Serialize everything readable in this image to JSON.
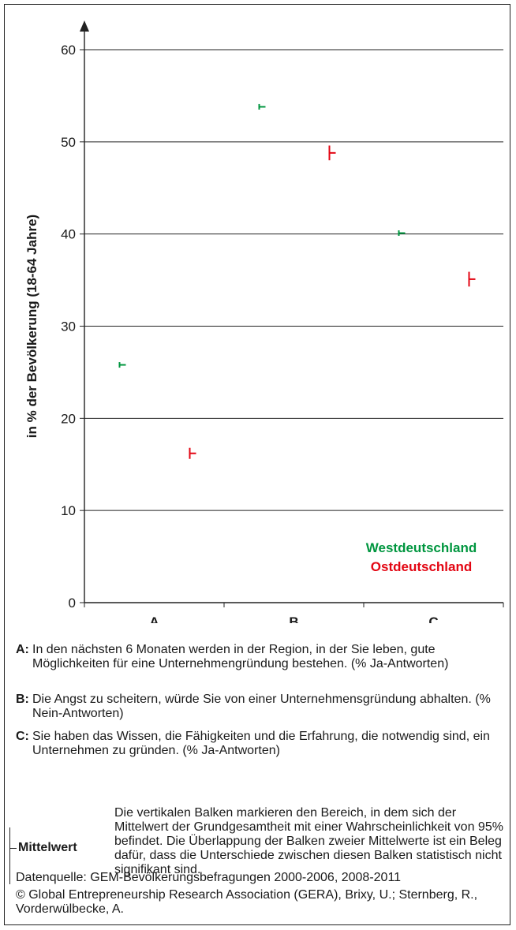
{
  "chart_data": {
    "type": "scatter",
    "ylabel": "in % der Bevölkerung (18-64 Jahre)",
    "ylim": [
      0,
      60
    ],
    "yticks": [
      "0",
      "10",
      "20",
      "30",
      "40",
      "50",
      "60"
    ],
    "categories": [
      "A",
      "B",
      "C"
    ],
    "grid": true,
    "series": [
      {
        "name": "Westdeutschland",
        "color": "#00963f",
        "values": [
          25.8,
          53.8,
          40.1
        ],
        "ci": [
          0.3,
          0.3,
          0.3
        ]
      },
      {
        "name": "Ostdeutschland",
        "color": "#e30613",
        "values": [
          16.2,
          48.8,
          35.1
        ],
        "ci": [
          0.6,
          0.8,
          0.8
        ]
      }
    ],
    "legend_position": "bottom-right"
  },
  "notes": [
    {
      "key": "A:",
      "text": "In den nächsten 6 Monaten werden in der Region, in der Sie leben, gute Möglichkeiten für eine Unternehmengründung bestehen. (% Ja-Antworten)"
    },
    {
      "key": "B:",
      "text": "Die Angst zu scheitern, würde Sie von einer Unternehmensgründung abhalten. (% Nein-Antworten)"
    },
    {
      "key": "C:",
      "text": "Sie haben das Wissen, die Fähigkeiten und die Erfahrung, die notwendig sind, ein Unternehmen zu gründen. (% Ja-Antworten)"
    }
  ],
  "mean_legend": {
    "label": "Mittelwert",
    "text": "Die vertikalen Balken markieren den Bereich, in dem sich der Mittelwert der Grundgesamtheit mit einer Wahrscheinlichkeit von 95% befindet. Die Überlappung der Balken zweier Mittelwerte ist ein Beleg dafür, dass die Unterschiede zwischen diesen Balken statistisch nicht signifikant sind."
  },
  "source": "Datenquelle: GEM-Bevölkerungsbefragungen 2000-2006, 2008-2011",
  "copyright": "© Global Entrepreneurship Research Association (GERA), Brixy, U.; Sternberg, R., Vorderwülbecke, A."
}
